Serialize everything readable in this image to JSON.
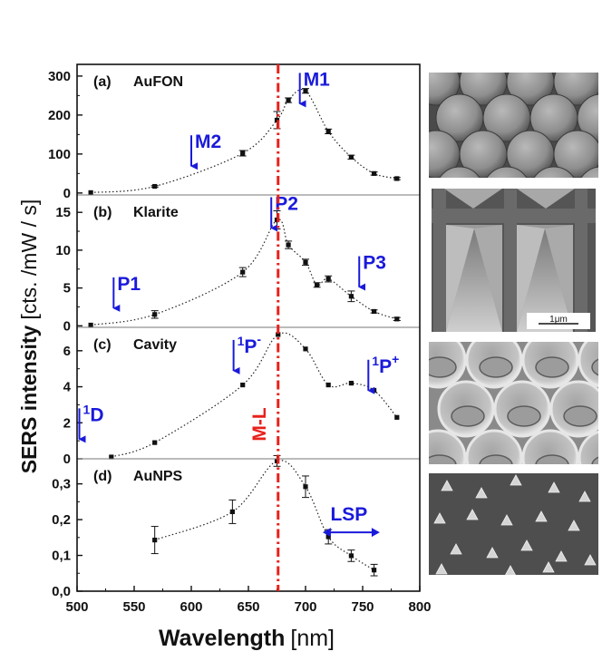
{
  "chart_data": {
    "type": "scatter",
    "x_axis": {
      "label_bold": "Wavelength",
      "label_unit": "[nm]",
      "range": [
        500,
        800
      ],
      "ticks": [
        500,
        550,
        600,
        650,
        700,
        750,
        800
      ],
      "tick_labels": [
        "500",
        "550",
        "600",
        "650",
        "700",
        "750",
        "800"
      ]
    },
    "y_axis_label": {
      "bold": "SERS intensity",
      "unit": "[cts. /mW / s]"
    },
    "reference_line": {
      "label": "M-L",
      "x": 676,
      "color": "#e8211b"
    },
    "panels": [
      {
        "id": "a",
        "tag": "(a)",
        "name": "AuFON",
        "ylim": [
          -5,
          330
        ],
        "y_ticks": [
          0,
          100,
          200,
          300
        ],
        "y_tick_labels": [
          "0",
          "100",
          "200",
          "300"
        ],
        "points": [
          {
            "x": 512,
            "y": 1,
            "err": 0
          },
          {
            "x": 568,
            "y": 17,
            "err": 2
          },
          {
            "x": 645,
            "y": 102,
            "err": 7
          },
          {
            "x": 675,
            "y": 187,
            "err": 22
          },
          {
            "x": 685,
            "y": 238,
            "err": 6
          },
          {
            "x": 700,
            "y": 262,
            "err": 6
          },
          {
            "x": 720,
            "y": 158,
            "err": 6
          },
          {
            "x": 740,
            "y": 92,
            "err": 5
          },
          {
            "x": 760,
            "y": 50,
            "err": 4
          },
          {
            "x": 780,
            "y": 37,
            "err": 3
          }
        ],
        "annotations": [
          {
            "text": "M1",
            "sup": "",
            "x": 695,
            "y": 308,
            "dir": "down"
          },
          {
            "text": "M2",
            "sup": "",
            "x": 600,
            "y": 148,
            "dir": "down"
          }
        ]
      },
      {
        "id": "b",
        "tag": "(b)",
        "name": "Klarite",
        "ylim": [
          -0.2,
          17.3
        ],
        "y_ticks": [
          0,
          5,
          10,
          15
        ],
        "y_tick_labels": [
          "0",
          "5",
          "10",
          "15"
        ],
        "points": [
          {
            "x": 512,
            "y": 0.1,
            "err": 0
          },
          {
            "x": 568,
            "y": 1.5,
            "err": 0.5
          },
          {
            "x": 645,
            "y": 7.1,
            "err": 0.6
          },
          {
            "x": 675,
            "y": 14.0,
            "err": 1.2
          },
          {
            "x": 685,
            "y": 10.7,
            "err": 0.5
          },
          {
            "x": 700,
            "y": 8.4,
            "err": 0.4
          },
          {
            "x": 710,
            "y": 5.4,
            "err": 0.3
          },
          {
            "x": 720,
            "y": 6.2,
            "err": 0.4
          },
          {
            "x": 740,
            "y": 3.9,
            "err": 0.7
          },
          {
            "x": 760,
            "y": 1.9,
            "err": 0.2
          },
          {
            "x": 780,
            "y": 0.9,
            "err": 0.2
          }
        ],
        "annotations": [
          {
            "text": "P2",
            "sup": "",
            "x": 670,
            "y": 17.0,
            "dir": "down"
          },
          {
            "text": "P1",
            "sup": "",
            "x": 532,
            "y": 6.4,
            "dir": "down"
          },
          {
            "text": "P3",
            "sup": "",
            "x": 747,
            "y": 9.2,
            "dir": "down"
          }
        ]
      },
      {
        "id": "c",
        "tag": "(c)",
        "name": "Cavity",
        "ylim": [
          0,
          7.3
        ],
        "y_ticks": [
          0,
          2,
          4,
          6
        ],
        "y_tick_labels": [
          "0",
          "2",
          "4",
          "6"
        ],
        "points": [
          {
            "x": 530,
            "y": 0.1,
            "err": 0
          },
          {
            "x": 568,
            "y": 0.9,
            "err": 0
          },
          {
            "x": 645,
            "y": 4.1,
            "err": 0
          },
          {
            "x": 676,
            "y": 6.9,
            "err": 0
          },
          {
            "x": 700,
            "y": 6.1,
            "err": 0
          },
          {
            "x": 720,
            "y": 4.1,
            "err": 0
          },
          {
            "x": 740,
            "y": 4.2,
            "err": 0
          },
          {
            "x": 760,
            "y": 3.8,
            "err": 0
          },
          {
            "x": 780,
            "y": 2.3,
            "err": 0
          }
        ],
        "annotations": [
          {
            "text": "P",
            "sup": "1",
            "sup2": "-",
            "x": 637,
            "y": 6.6,
            "dir": "down"
          },
          {
            "text": "P",
            "sup": "1",
            "sup2": "+",
            "x": 755,
            "y": 5.5,
            "dir": "down"
          },
          {
            "text": "D",
            "sup": "1",
            "sup2": "",
            "x": 502,
            "y": 2.8,
            "dir": "down"
          }
        ]
      },
      {
        "id": "d",
        "tag": "(d)",
        "name": "AuNPS",
        "ylim": [
          0,
          0.37
        ],
        "y_ticks": [
          0,
          0.1,
          0.2,
          0.3
        ],
        "y_tick_labels": [
          "0,0",
          "0,1",
          "0,2",
          "0,3"
        ],
        "points": [
          {
            "x": 568,
            "y": 0.143,
            "err": 0.038
          },
          {
            "x": 636,
            "y": 0.222,
            "err": 0.033
          },
          {
            "x": 675,
            "y": 0.364,
            "err": 0.015
          },
          {
            "x": 700,
            "y": 0.292,
            "err": 0.03
          },
          {
            "x": 720,
            "y": 0.152,
            "err": 0.02
          },
          {
            "x": 740,
            "y": 0.099,
            "err": 0.016
          },
          {
            "x": 760,
            "y": 0.059,
            "err": 0.016
          }
        ],
        "annotations": [
          {
            "text": "LSP",
            "sup": "",
            "x": 738,
            "y": 0.2,
            "dir": "range",
            "from": 715,
            "to": 765
          }
        ]
      }
    ],
    "insets": [
      {
        "name": "AuFON",
        "pattern": "spheres",
        "scale_bar": ""
      },
      {
        "name": "Klarite",
        "pattern": "pyramids",
        "scale_bar": "1μm"
      },
      {
        "name": "Cavity",
        "pattern": "cavities",
        "scale_bar": ""
      },
      {
        "name": "AuNPS",
        "pattern": "triangles",
        "scale_bar": ""
      }
    ]
  }
}
